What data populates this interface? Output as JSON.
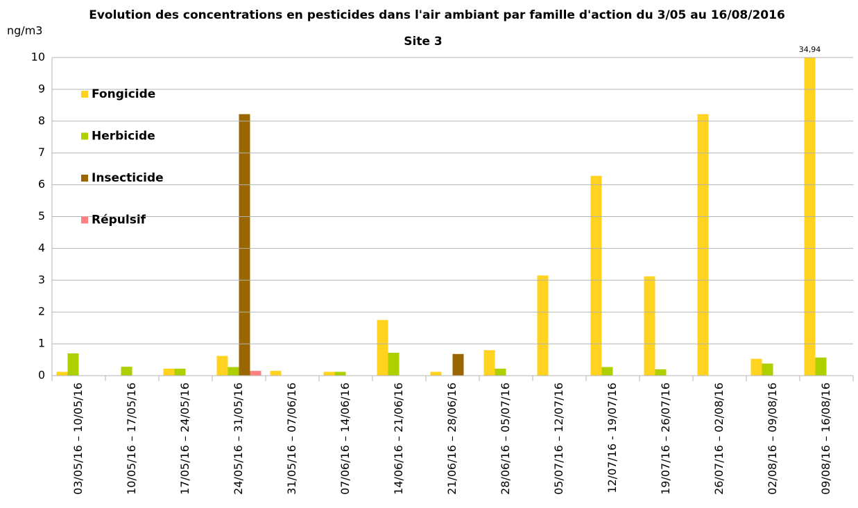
{
  "chart_data": {
    "type": "bar",
    "title": "Evolution des concentrations en pesticides dans l'air ambiant par famille d'action du 3/05 au 16/08/2016",
    "subtitle": "Site 3",
    "y_label": "ng/m3",
    "categories": [
      "03/05/16 – 10/05/16",
      "10/05/16 – 17/05/16",
      "17/05/16 – 24/05/16",
      "24/05/16 – 31/05/16",
      "31/05/16 – 07/06/16",
      "07/06/16 – 14/06/16",
      "14/06/16 – 21/06/16",
      "21/06/16 – 28/06/16",
      "28/06/16 – 05/07/16",
      "05/07/16 – 12/07/16",
      "12/07/16 -  19/07/16",
      "19/07/16 – 26/07/16",
      "26/07/16 – 02/08/16",
      "02/08/16 – 09/08/16",
      "09/08/16 – 16/08/16"
    ],
    "series": [
      {
        "name": "Fongicide",
        "color": "#ffd320",
        "values": [
          0.12,
          0,
          0.22,
          0.62,
          0.15,
          0.12,
          1.75,
          0.12,
          0.8,
          3.15,
          6.28,
          3.12,
          8.22,
          0.53,
          34.94
        ],
        "value_labels": [
          null,
          null,
          null,
          null,
          null,
          null,
          null,
          null,
          null,
          null,
          null,
          null,
          null,
          null,
          "34,94"
        ]
      },
      {
        "name": "Herbicide",
        "color": "#aecf00",
        "values": [
          0.7,
          0.28,
          0.22,
          0.27,
          0,
          0.12,
          0.72,
          0,
          0.22,
          0,
          0.27,
          0.2,
          0,
          0.38,
          0.57
        ]
      },
      {
        "name": "Insecticide",
        "color": "#996600",
        "values": [
          0,
          0,
          0,
          8.22,
          0,
          0,
          0,
          0.68,
          0,
          0,
          0,
          0,
          0,
          0,
          0
        ]
      },
      {
        "name": "Répulsif",
        "color": "#ff8080",
        "values": [
          0,
          0,
          0,
          0.15,
          0,
          0,
          0,
          0,
          0,
          0,
          0,
          0,
          0,
          0,
          0
        ]
      }
    ],
    "ylim": [
      0,
      10
    ],
    "yticks": [
      0,
      1,
      2,
      3,
      4,
      5,
      6,
      7,
      8,
      9,
      10
    ],
    "grid": true,
    "legend": "top-left"
  }
}
